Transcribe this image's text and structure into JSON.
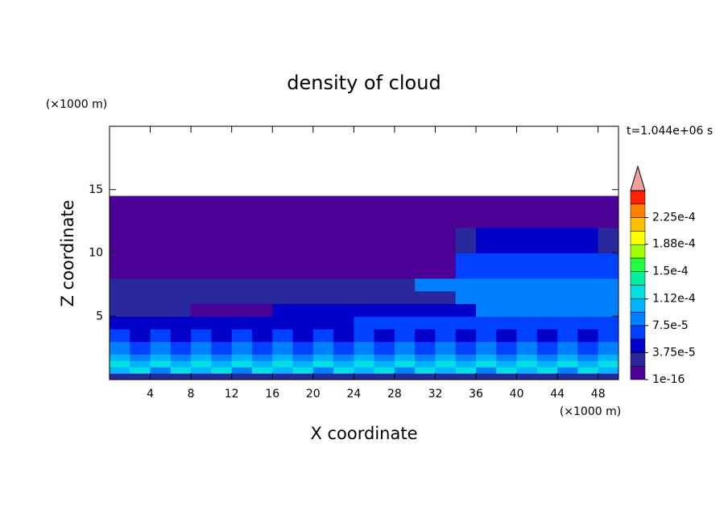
{
  "chart_data": {
    "type": "contour",
    "title": "density of cloud",
    "x_label": "X coordinate",
    "y_label": "Z coordinate",
    "x_unit": "(×1000 m)",
    "y_unit": "(×1000 m)",
    "time_label": "t=1.044e+06 s",
    "xlim": [
      0,
      50
    ],
    "ylim": [
      0,
      20
    ],
    "xticks": [
      4,
      8,
      12,
      16,
      20,
      24,
      28,
      32,
      36,
      40,
      44,
      48
    ],
    "yticks": [
      5,
      10,
      15
    ],
    "x_edges": [
      0,
      2,
      4,
      6,
      8,
      10,
      12,
      14,
      16,
      18,
      20,
      22,
      24,
      26,
      28,
      30,
      32,
      34,
      36,
      38,
      40,
      42,
      44,
      46,
      48,
      50
    ],
    "z_edges": [
      0,
      0.5,
      1,
      1.5,
      2,
      3,
      4,
      5,
      6,
      7,
      8,
      10,
      12,
      14.5
    ],
    "values": [
      [
        3e-05,
        2e-05,
        3e-05,
        2e-05,
        3e-05,
        2e-05,
        3e-05,
        2e-05,
        3e-05,
        2e-05,
        3e-05,
        2e-05,
        3e-05,
        2e-05,
        3e-05,
        2e-05,
        3e-05,
        2e-05,
        3e-05,
        2e-05,
        3e-05,
        2e-05,
        3e-05,
        2e-05,
        3e-05
      ],
      [
        0.0001,
        0.00012,
        9e-05,
        0.00012,
        0.0001,
        0.00012,
        9e-05,
        0.00012,
        0.0001,
        0.00012,
        9e-05,
        0.00012,
        0.0001,
        0.00012,
        9e-05,
        0.00012,
        0.0001,
        0.00012,
        9e-05,
        0.00012,
        0.0001,
        0.00012,
        9e-05,
        0.00012,
        0.0001
      ],
      [
        0.00013,
        0.00011,
        0.00013,
        0.00011,
        0.00013,
        0.00011,
        0.00013,
        0.00011,
        0.00013,
        0.00011,
        0.00013,
        0.00011,
        0.00013,
        0.00011,
        0.00013,
        0.00011,
        0.00013,
        0.00011,
        0.00013,
        0.00011,
        0.00013,
        0.00011,
        0.00013,
        0.00011,
        0.00013
      ],
      [
        0.0001,
        9e-05,
        0.0001,
        9e-05,
        0.0001,
        9e-05,
        0.0001,
        9e-05,
        0.0001,
        9e-05,
        0.0001,
        9e-05,
        0.0001,
        9e-05,
        0.0001,
        9e-05,
        0.0001,
        9e-05,
        0.0001,
        9e-05,
        0.0001,
        9e-05,
        0.0001,
        9e-05,
        0.0001
      ],
      [
        8e-05,
        7e-05,
        8e-05,
        7e-05,
        8e-05,
        7e-05,
        8e-05,
        7e-05,
        8e-05,
        7e-05,
        8e-05,
        7e-05,
        8e-05,
        7e-05,
        8e-05,
        7e-05,
        8e-05,
        7e-05,
        8e-05,
        7e-05,
        8e-05,
        7e-05,
        8e-05,
        7e-05,
        8e-05
      ],
      [
        6e-05,
        5e-05,
        6e-05,
        5e-05,
        6e-05,
        5e-05,
        6e-05,
        5e-05,
        6e-05,
        5e-05,
        6e-05,
        5e-05,
        6e-05,
        5e-05,
        6e-05,
        5e-05,
        6e-05,
        5e-05,
        6e-05,
        5e-05,
        6e-05,
        5e-05,
        6e-05,
        5e-05,
        6e-05
      ],
      [
        5e-05,
        5e-05,
        5e-05,
        5e-05,
        5e-05,
        5e-05,
        5e-05,
        5e-05,
        5e-05,
        5e-05,
        5e-05,
        5e-05,
        6e-05,
        6e-05,
        6e-05,
        6e-05,
        6e-05,
        6e-05,
        6e-05,
        6e-05,
        6e-05,
        6e-05,
        6e-05,
        6e-05,
        6e-05
      ],
      [
        2e-05,
        2e-05,
        2e-05,
        2e-05,
        1e-16,
        1e-16,
        1e-16,
        1e-16,
        4e-05,
        4e-05,
        4e-05,
        4e-05,
        4e-05,
        4e-05,
        4e-05,
        4e-05,
        4e-05,
        4e-05,
        9e-05,
        9e-05,
        9e-05,
        9e-05,
        9e-05,
        9e-05,
        9e-05
      ],
      [
        2e-05,
        2e-05,
        2e-05,
        2e-05,
        2e-05,
        2e-05,
        2e-05,
        2e-05,
        2e-05,
        2e-05,
        2e-05,
        2e-05,
        2e-05,
        2e-05,
        2e-05,
        2e-05,
        2e-05,
        9e-05,
        9e-05,
        9e-05,
        9e-05,
        9e-05,
        9e-05,
        9e-05,
        9e-05
      ],
      [
        2e-05,
        2e-05,
        2e-05,
        2e-05,
        2e-05,
        2e-05,
        2e-05,
        2e-05,
        2e-05,
        2e-05,
        2e-05,
        2e-05,
        2e-05,
        2e-05,
        2e-05,
        8e-05,
        8e-05,
        8e-05,
        8e-05,
        8e-05,
        8e-05,
        8e-05,
        8e-05,
        8e-05,
        8e-05
      ],
      [
        1e-16,
        1e-16,
        1e-16,
        1e-16,
        1e-16,
        1e-16,
        1e-16,
        1e-16,
        1e-16,
        1e-16,
        1e-16,
        1e-16,
        1e-16,
        1e-16,
        1e-16,
        1e-16,
        1e-16,
        6e-05,
        6e-05,
        6e-05,
        6e-05,
        6e-05,
        6e-05,
        6e-05,
        6e-05
      ],
      [
        1e-16,
        1e-16,
        1e-16,
        1e-16,
        1e-16,
        1e-16,
        1e-16,
        1e-16,
        1e-16,
        1e-16,
        1e-16,
        1e-16,
        1e-16,
        1e-16,
        1e-16,
        1e-16,
        1e-16,
        2e-05,
        4e-05,
        4e-05,
        4e-05,
        4e-05,
        4e-05,
        4e-05,
        2e-05
      ],
      [
        1e-16,
        1e-16,
        1e-16,
        1e-16,
        1e-16,
        1e-16,
        1e-16,
        1e-16,
        1e-16,
        1e-16,
        1e-16,
        1e-16,
        1e-16,
        1e-16,
        1e-16,
        1e-16,
        1e-16,
        1e-16,
        1e-16,
        1e-16,
        1e-16,
        1e-16,
        1e-16,
        1e-16,
        1e-16
      ]
    ],
    "colorbar_lim": [
      0,
      0.0002625
    ],
    "colorbar_ticks": [
      {
        "value": 1e-16,
        "label": "1e-16"
      },
      {
        "value": 3.75e-05,
        "label": "3.75e-5"
      },
      {
        "value": 7.5e-05,
        "label": "7.5e-5"
      },
      {
        "value": 0.000112,
        "label": "1.12e-4"
      },
      {
        "value": 0.00015,
        "label": "1.5e-4"
      },
      {
        "value": 0.000188,
        "label": "1.88e-4"
      },
      {
        "value": 0.000225,
        "label": "2.25e-4"
      }
    ],
    "colors": [
      "#4b0096",
      "#28289c",
      "#0000c8",
      "#0040ff",
      "#0080ff",
      "#00b4ff",
      "#00e0e0",
      "#00f0a0",
      "#20ff40",
      "#a0ff00",
      "#ffff00",
      "#ffc000",
      "#ff8000",
      "#ff2000"
    ],
    "extend_color": "#f4a0a0"
  }
}
